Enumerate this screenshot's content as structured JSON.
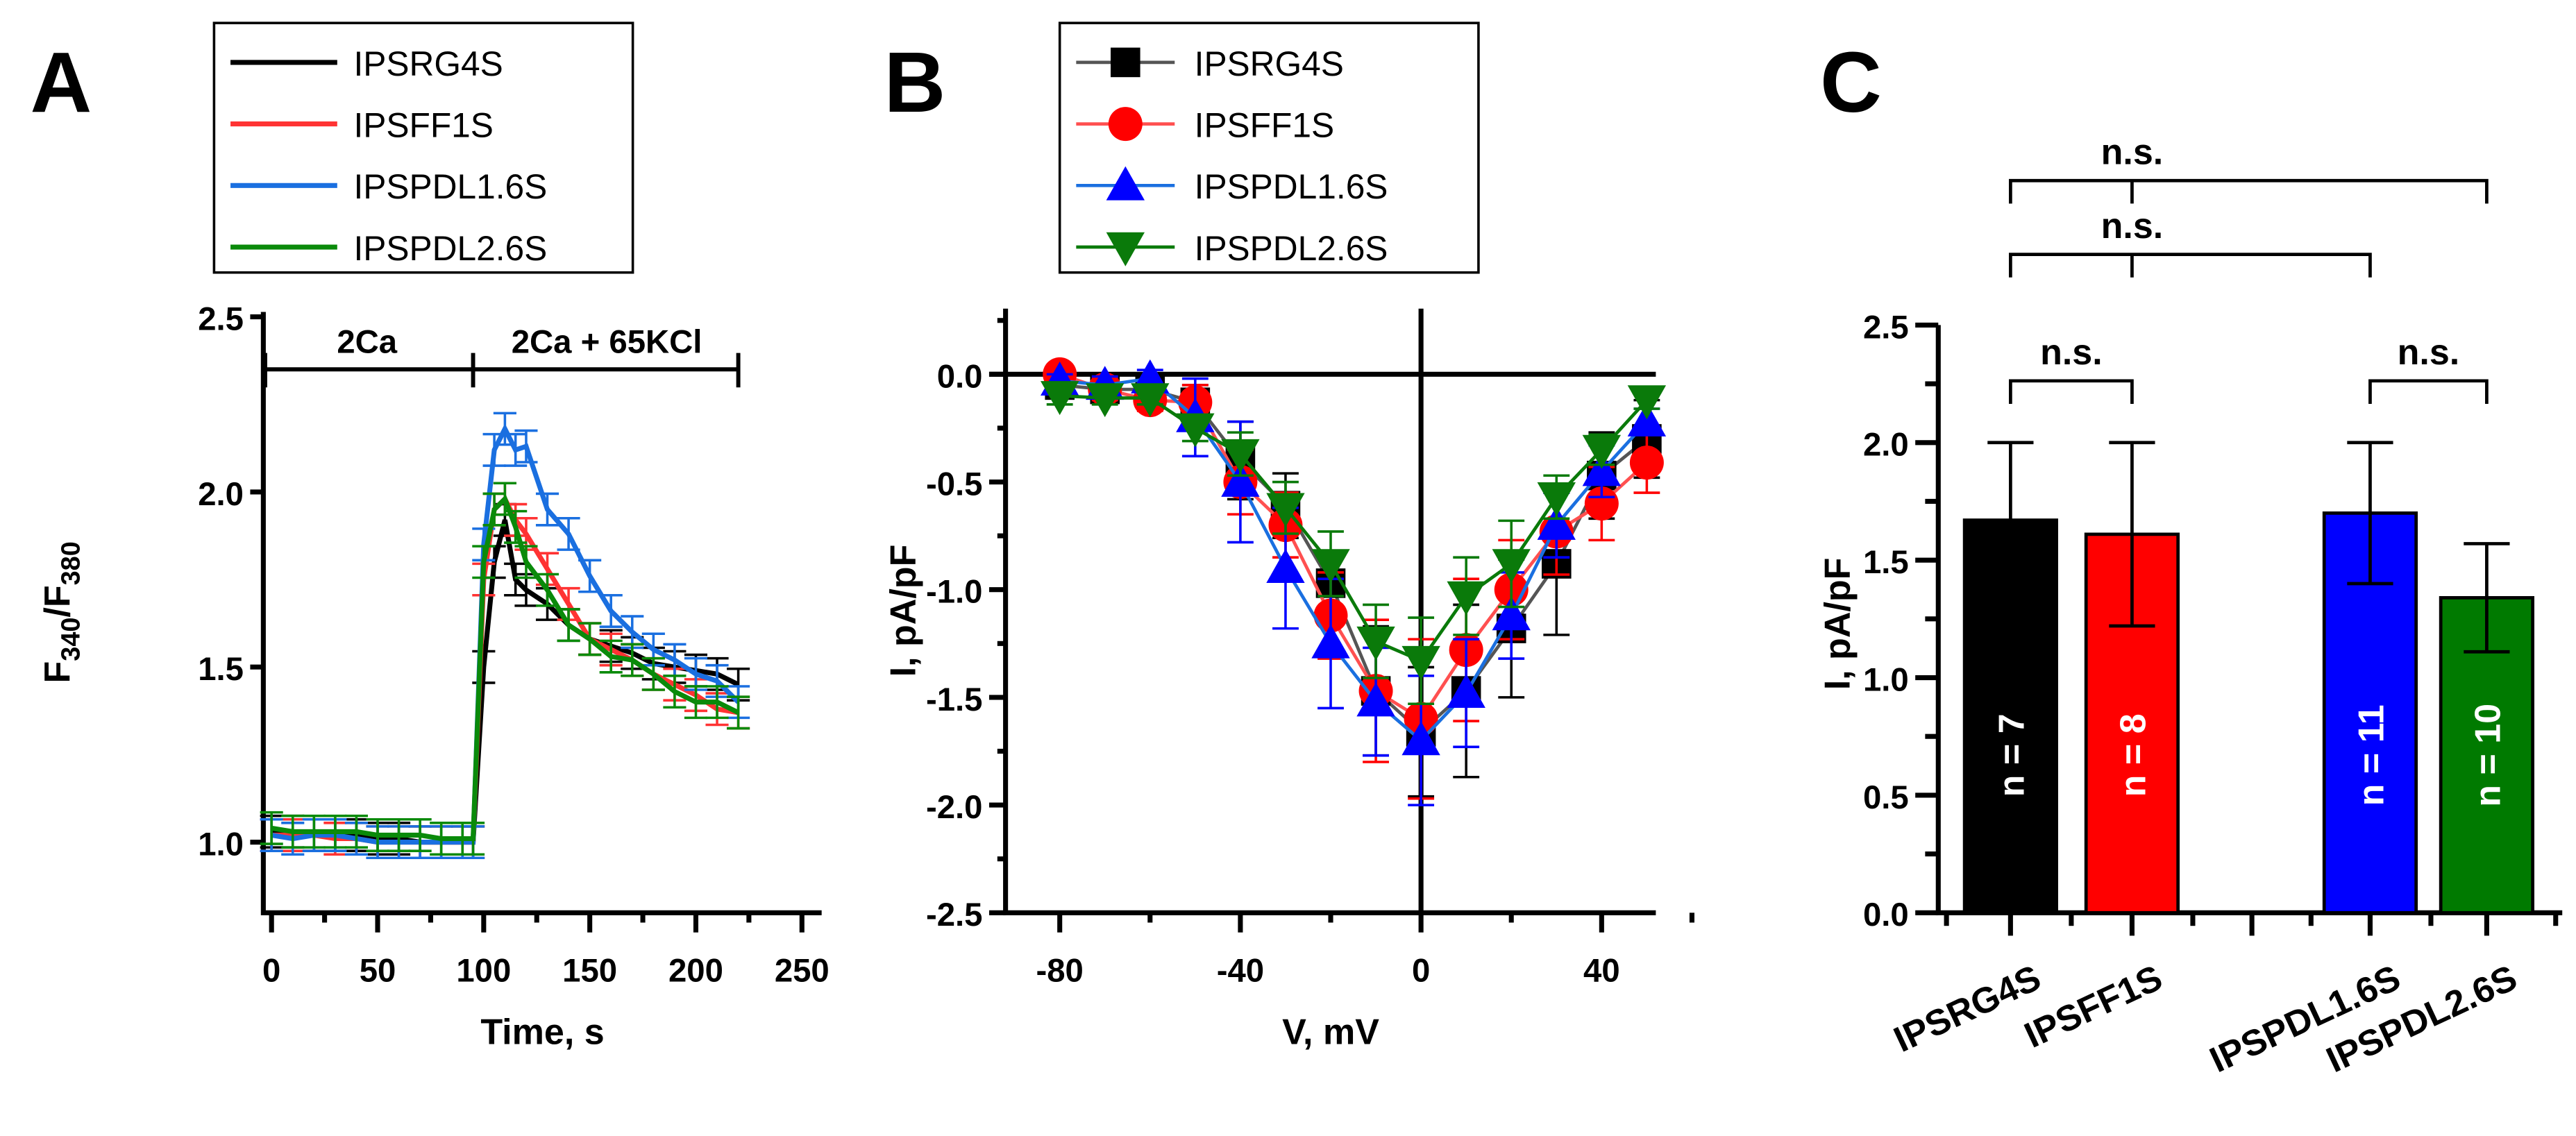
{
  "panels": {
    "a": "A",
    "b": "B",
    "c": "C"
  },
  "legend": [
    {
      "name": "IPSRG4S",
      "color": "#000000"
    },
    {
      "name": "IPSFF1S",
      "color": "#ff3333"
    },
    {
      "name": "IPSPDL1.6S",
      "color": "#1a6fe0"
    },
    {
      "name": "IPSPDL2.6S",
      "color": "#0a8a0a"
    }
  ],
  "legend_b": [
    {
      "name": "IPSRG4S",
      "color": "#000000",
      "marker": "square",
      "line": "#555555"
    },
    {
      "name": "IPSFF1S",
      "color": "#ff0000",
      "marker": "circle",
      "line": "#ff5050"
    },
    {
      "name": "IPSPDL1.6S",
      "color": "#0000ff",
      "marker": "triangle-up",
      "line": "#1a6fe0"
    },
    {
      "name": "IPSPDL2.6S",
      "color": "#0a7a0a",
      "marker": "triangle-down",
      "line": "#0a7a0a"
    }
  ],
  "chart_data": [
    {
      "type": "line",
      "title": "",
      "xlabel": "Time, s",
      "ylabel": "F340/F380",
      "ylabel_main": "F",
      "ylabel_sub1": "340",
      "ylabel_sep": "/F",
      "ylabel_sub2": "380",
      "xlim": [
        -5,
        250
      ],
      "ylim": [
        0.8,
        2.5
      ],
      "xticks": [
        "0",
        "50",
        "100",
        "150",
        "200",
        "250"
      ],
      "yticks": [
        "1.0",
        "1.5",
        "2.0",
        "2.5"
      ],
      "annotations": [
        "2Ca",
        "2Ca + 65KCl"
      ],
      "x": [
        0,
        10,
        20,
        30,
        40,
        50,
        60,
        70,
        80,
        90,
        95,
        100,
        105,
        110,
        115,
        120,
        130,
        140,
        150,
        160,
        170,
        180,
        190,
        200,
        210,
        220
      ],
      "series": [
        {
          "name": "IPSRG4S",
          "values": [
            1.03,
            1.03,
            1.02,
            1.02,
            1.02,
            1.01,
            1.01,
            1.0,
            1.0,
            1.0,
            1.0,
            1.5,
            1.8,
            1.92,
            1.75,
            1.72,
            1.68,
            1.62,
            1.58,
            1.56,
            1.54,
            1.51,
            1.5,
            1.49,
            1.48,
            1.45
          ]
        },
        {
          "name": "IPSFF1S",
          "values": [
            1.02,
            1.02,
            1.02,
            1.01,
            1.01,
            1.0,
            1.0,
            1.0,
            1.0,
            1.0,
            1.0,
            1.75,
            1.95,
            1.98,
            1.92,
            1.88,
            1.78,
            1.68,
            1.58,
            1.55,
            1.52,
            1.48,
            1.45,
            1.42,
            1.38,
            1.37
          ]
        },
        {
          "name": "IPSPDL1.6S",
          "values": [
            1.02,
            1.01,
            1.02,
            1.02,
            1.01,
            1.0,
            1.0,
            1.0,
            1.0,
            1.0,
            1.0,
            1.85,
            2.12,
            2.18,
            2.12,
            2.13,
            1.95,
            1.88,
            1.76,
            1.66,
            1.6,
            1.55,
            1.52,
            1.48,
            1.46,
            1.4
          ]
        },
        {
          "name": "IPSPDL2.6S",
          "values": [
            1.04,
            1.03,
            1.03,
            1.03,
            1.03,
            1.02,
            1.02,
            1.02,
            1.01,
            1.01,
            1.01,
            1.8,
            1.95,
            1.98,
            1.9,
            1.8,
            1.72,
            1.62,
            1.58,
            1.53,
            1.52,
            1.48,
            1.43,
            1.4,
            1.4,
            1.37
          ]
        }
      ]
    },
    {
      "type": "scatter",
      "xlabel": "V, mV",
      "ylabel": "I, pA/pF",
      "xlim": [
        -92,
        52
      ],
      "ylim": [
        -2.5,
        0.3
      ],
      "xticks": [
        "-80",
        "-40",
        "0",
        "40"
      ],
      "yticks": [
        "0.0",
        "-0.5",
        "-1.0",
        "-1.5",
        "-2.0",
        "-2.5"
      ],
      "x": [
        -80,
        -70,
        -60,
        -50,
        -40,
        -30,
        -20,
        -10,
        0,
        10,
        20,
        30,
        40,
        50
      ],
      "series": [
        {
          "name": "IPSRG4S",
          "values": [
            -0.05,
            -0.07,
            -0.07,
            -0.13,
            -0.4,
            -0.61,
            -0.97,
            -1.47,
            -1.66,
            -1.47,
            -1.18,
            -0.88,
            -0.47,
            -0.3
          ],
          "err": [
            0.03,
            0.03,
            0.05,
            0.08,
            0.18,
            0.15,
            0.12,
            0.3,
            0.3,
            0.4,
            0.32,
            0.33,
            0.2,
            0.18
          ]
        },
        {
          "name": "IPSFF1S",
          "values": [
            0.0,
            -0.07,
            -0.12,
            -0.13,
            -0.5,
            -0.7,
            -1.12,
            -1.47,
            -1.6,
            -1.28,
            -1.0,
            -0.73,
            -0.6,
            -0.41
          ],
          "err": [
            0.03,
            0.05,
            0.05,
            0.08,
            0.15,
            0.15,
            0.2,
            0.33,
            0.37,
            0.33,
            0.23,
            0.2,
            0.17,
            0.14
          ]
        },
        {
          "name": "IPSPDL1.6S",
          "values": [
            -0.03,
            -0.05,
            -0.02,
            -0.2,
            -0.5,
            -0.9,
            -1.25,
            -1.52,
            -1.7,
            -1.48,
            -1.12,
            -0.7,
            -0.45,
            -0.22
          ],
          "err": [
            0.03,
            0.04,
            0.04,
            0.18,
            0.28,
            0.28,
            0.3,
            0.25,
            0.3,
            0.25,
            0.2,
            0.15,
            0.12,
            0.06
          ]
        },
        {
          "name": "IPSPDL2.6S",
          "values": [
            -0.1,
            -0.11,
            -0.11,
            -0.25,
            -0.37,
            -0.62,
            -0.88,
            -1.24,
            -1.33,
            -1.03,
            -0.88,
            -0.57,
            -0.35,
            -0.12
          ],
          "err": [
            0.04,
            0.03,
            0.03,
            0.06,
            0.1,
            0.12,
            0.15,
            0.17,
            0.2,
            0.18,
            0.2,
            0.1,
            0.07,
            0.04
          ]
        }
      ]
    },
    {
      "type": "bar",
      "xlabel": "",
      "ylabel": "I, pA/pF",
      "ylim": [
        0,
        2.5
      ],
      "yticks": [
        "0.0",
        "0.5",
        "1.0",
        "1.5",
        "2.0",
        "2.5"
      ],
      "categories": [
        "IPSRG4S",
        "IPSFF1S",
        "",
        "IPSPDL1.6S",
        "IPSPDL2.6S"
      ],
      "values": [
        1.67,
        1.61,
        null,
        1.7,
        1.34
      ],
      "err": [
        0.33,
        0.39,
        null,
        0.3,
        0.23
      ],
      "colors": [
        "#000000",
        "#ff0000",
        "",
        "#0000ff",
        "#007a00"
      ],
      "bar_labels": [
        "n = 7",
        "n = 8",
        "",
        "n = 11",
        "n = 10"
      ],
      "significance": [
        {
          "pair": [
            0,
            1
          ],
          "label": "n.s."
        },
        {
          "pair": [
            3,
            4
          ],
          "label": "n.s."
        },
        {
          "pair": [
            0,
            3
          ],
          "label": "n.s."
        },
        {
          "pair": [
            0,
            4
          ],
          "label": "n.s."
        }
      ]
    }
  ]
}
